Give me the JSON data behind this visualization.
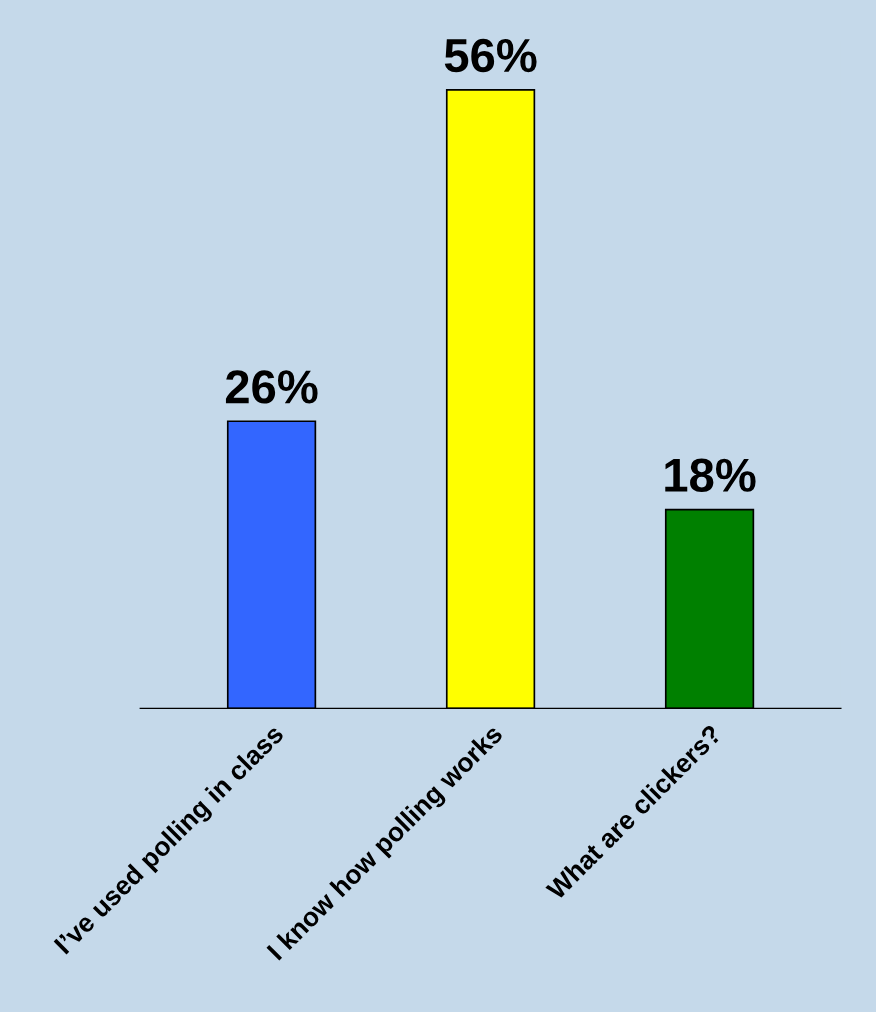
{
  "chart_data": {
    "type": "bar",
    "categories": [
      "I’ve used polling in class",
      "I know how polling works",
      "What are clickers?"
    ],
    "values": [
      26,
      56,
      18
    ],
    "colors": [
      "#3366ff",
      "#ffff00",
      "#008000"
    ],
    "value_labels": [
      "26%",
      "56%",
      "18%"
    ],
    "tick_labels": "x",
    "grid": false,
    "legend": false
  }
}
